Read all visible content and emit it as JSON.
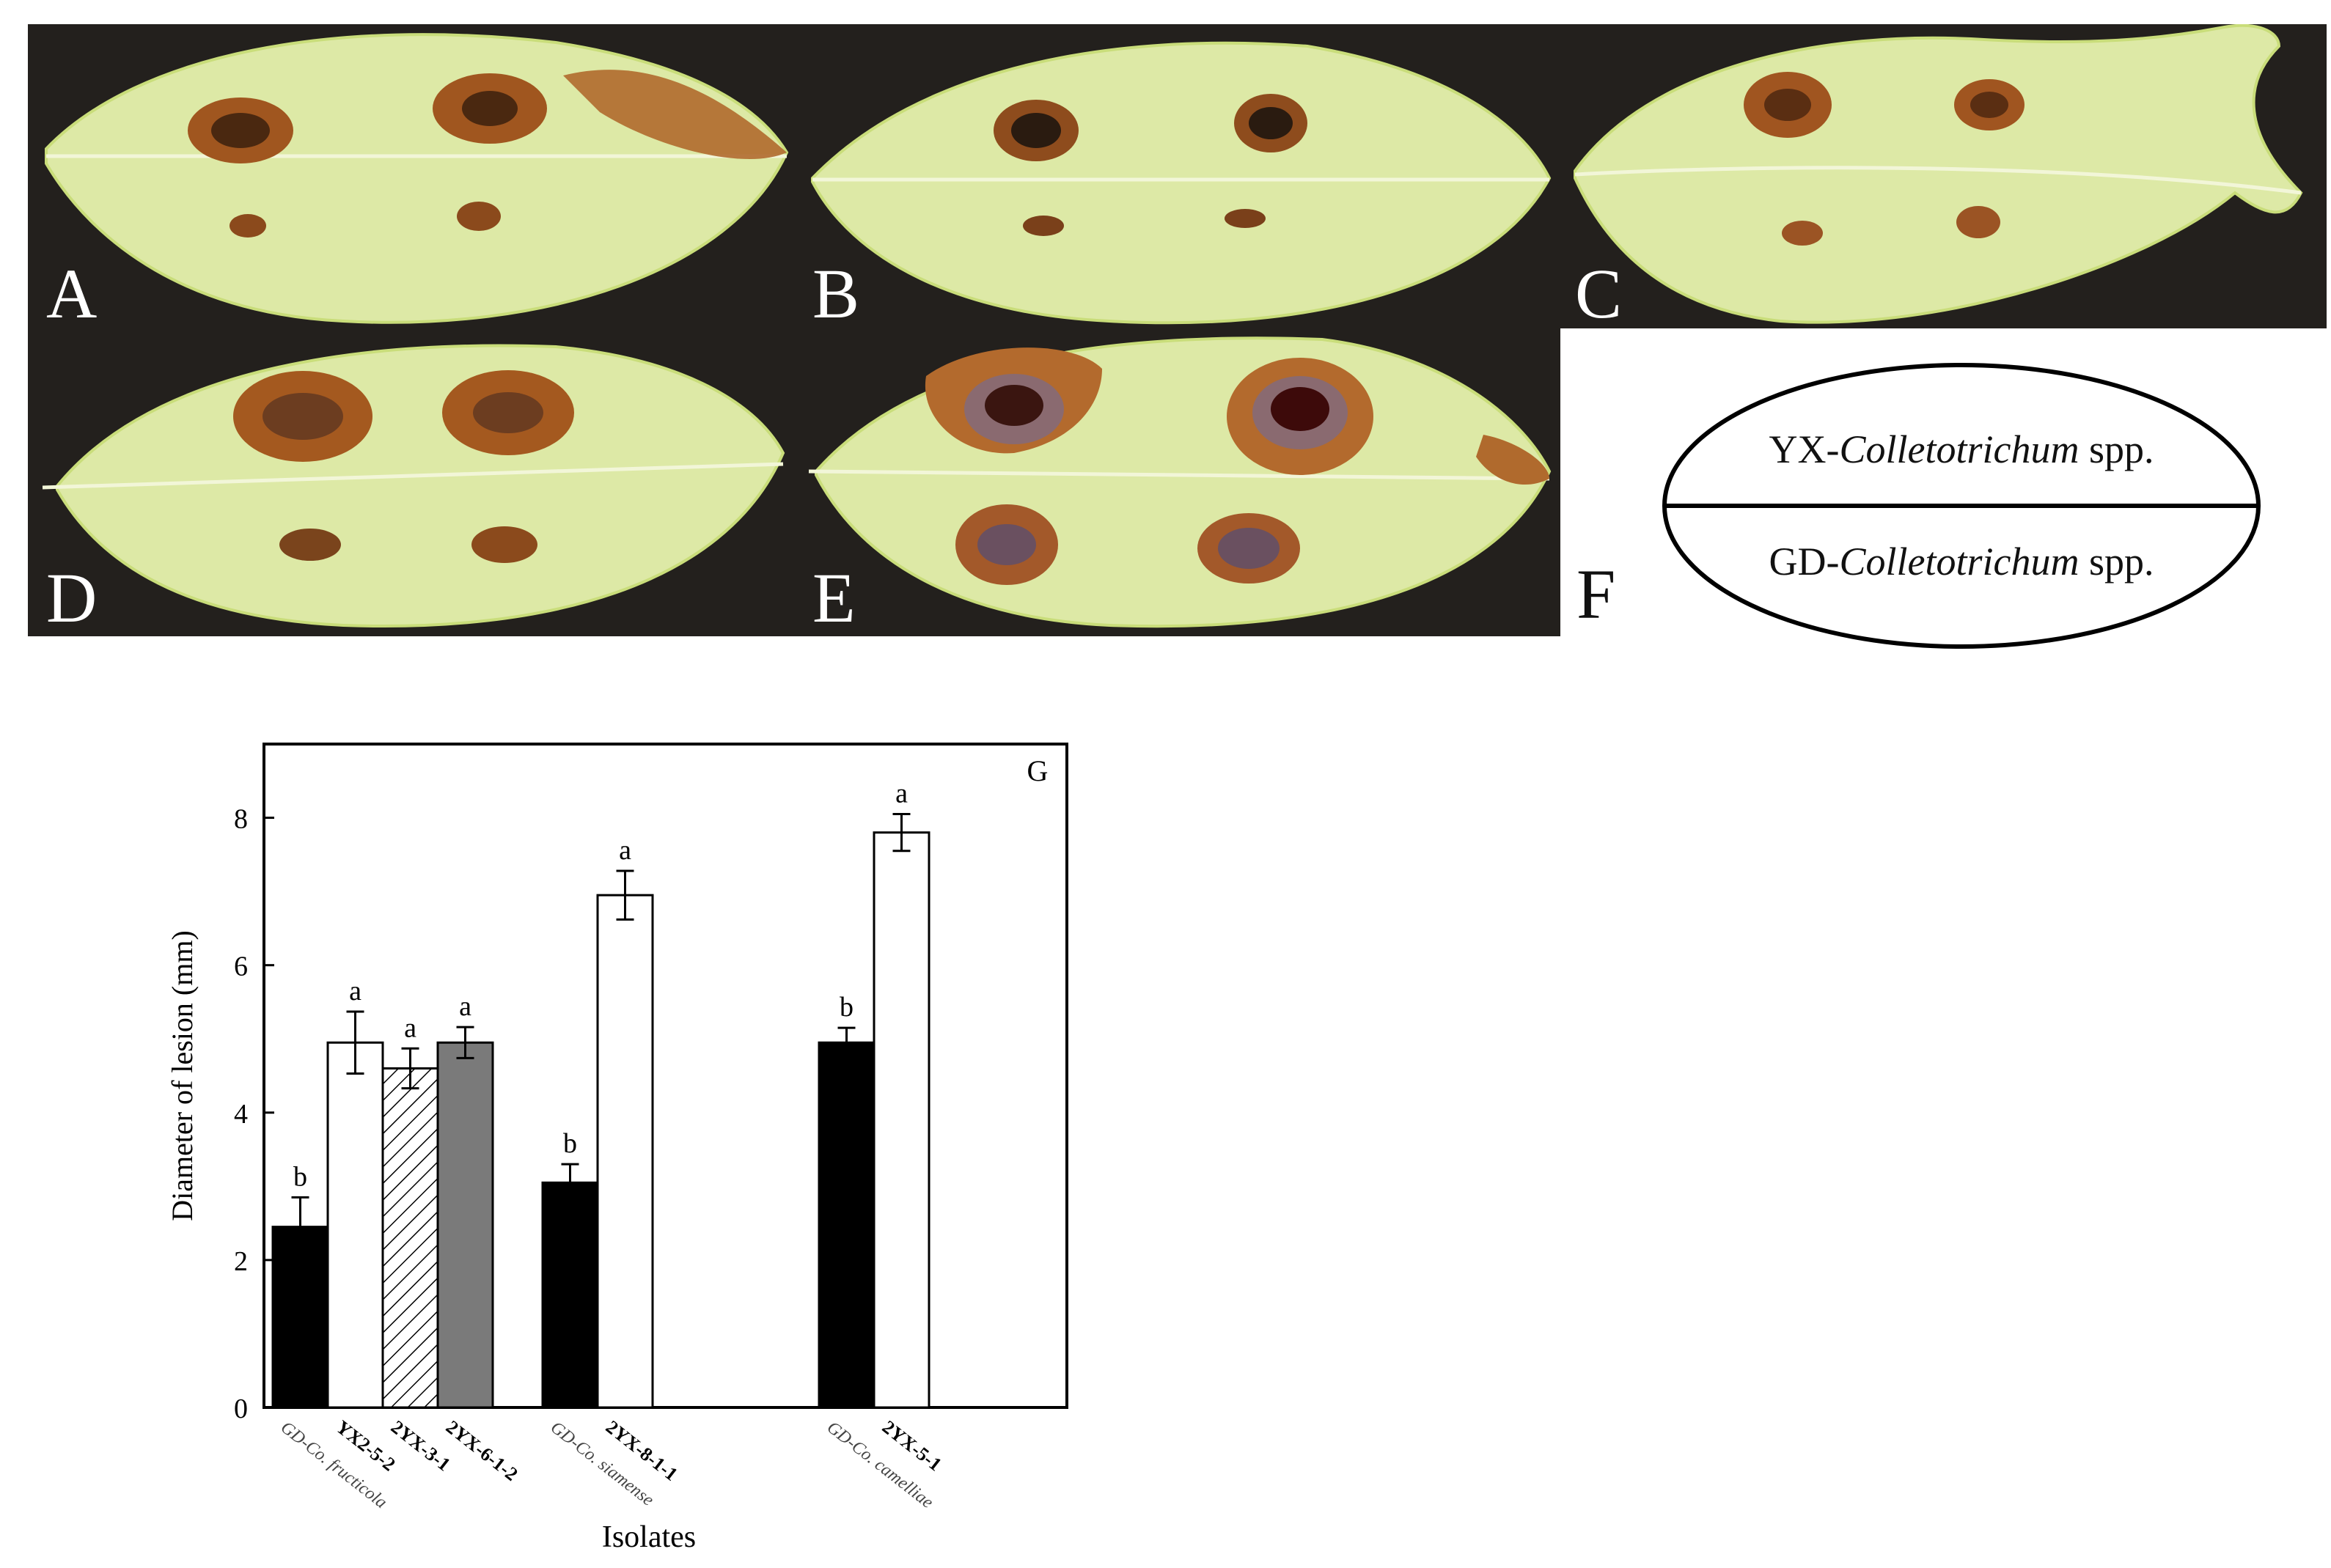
{
  "panels": {
    "A": {
      "label": "A"
    },
    "B": {
      "label": "B"
    },
    "C": {
      "label": "C"
    },
    "D": {
      "label": "D"
    },
    "E": {
      "label": "E"
    },
    "F": {
      "label": "F"
    }
  },
  "legend_ellipse": {
    "top_prefix": "YX-",
    "top_italic": "Colletotrichum",
    "top_suffix": " spp.",
    "bottom_prefix": "GD-",
    "bottom_italic": "Colletotrichum",
    "bottom_suffix": " spp."
  },
  "colors": {
    "leaf": "#dde9a6",
    "leaf_edge": "#c9dd7a",
    "lesion": "#8b4a1c",
    "background": "#23201d"
  },
  "chart_data": {
    "type": "bar",
    "panel_label": "G",
    "xlabel": "Isolates",
    "ylabel": "Diameter of lesion (mm)",
    "ylim": [
      0,
      9
    ],
    "yticks": [
      0,
      2,
      4,
      6,
      8
    ],
    "grid": false,
    "bars": [
      {
        "label": "GD-Co. fructicola",
        "value": 2.45,
        "error": 0.4,
        "letter": "b",
        "fill": "black",
        "group": 0
      },
      {
        "label": "YX2-5-2",
        "value": 4.95,
        "error": 0.42,
        "letter": "a",
        "fill": "white",
        "group": 0
      },
      {
        "label": "2YX-3-1",
        "value": 4.6,
        "error": 0.27,
        "letter": "a",
        "fill": "hatch",
        "group": 0
      },
      {
        "label": "2YX-6-1-2",
        "value": 4.95,
        "error": 0.21,
        "letter": "a",
        "fill": "gray",
        "group": 0
      },
      {
        "label": "GD-Co. siamense",
        "value": 3.05,
        "error": 0.25,
        "letter": "b",
        "fill": "black",
        "group": 1
      },
      {
        "label": "2YX-8-1-1",
        "value": 6.95,
        "error": 0.33,
        "letter": "a",
        "fill": "white",
        "group": 1
      },
      {
        "label": "GD-Co. camelliae",
        "value": 4.95,
        "error": 0.2,
        "letter": "b",
        "fill": "black",
        "group": 2
      },
      {
        "label": "2YX-5-1",
        "value": 7.8,
        "error": 0.25,
        "letter": "a",
        "fill": "white",
        "group": 2
      }
    ]
  }
}
